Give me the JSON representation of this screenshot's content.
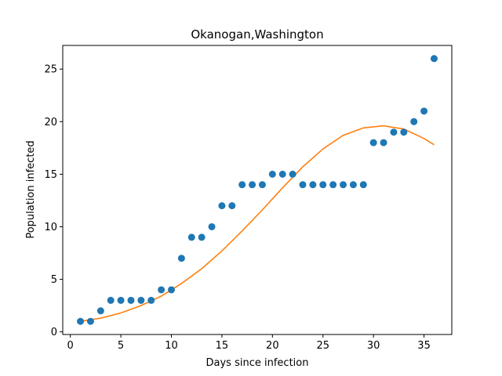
{
  "chart_data": {
    "type": "scatter",
    "title": "Okanogan,Washington",
    "xlabel": "Days since infection",
    "ylabel": "Population infected",
    "xlim": [
      -0.75,
      37.75
    ],
    "ylim": [
      -0.25,
      27.25
    ],
    "xticks": [
      0,
      5,
      10,
      15,
      20,
      25,
      30,
      35
    ],
    "yticks": [
      0,
      5,
      10,
      15,
      20,
      25
    ],
    "grid": false,
    "colors": {
      "points": "#1f77b4",
      "fit": "#ff7f0e"
    },
    "series": [
      {
        "type": "scatter",
        "x": [
          1,
          2,
          3,
          4,
          5,
          6,
          7,
          8,
          9,
          10,
          11,
          12,
          13,
          14,
          15,
          16,
          17,
          18,
          19,
          20,
          21,
          22,
          23,
          24,
          25,
          26,
          27,
          28,
          29,
          30,
          31,
          32,
          33,
          34,
          35,
          36
        ],
        "y": [
          1,
          1,
          2,
          3,
          3,
          3,
          3,
          3,
          4,
          4,
          7,
          9,
          9,
          10,
          12,
          12,
          14,
          14,
          14,
          15,
          15,
          15,
          14,
          14,
          14,
          14,
          14,
          14,
          14,
          18,
          18,
          19,
          19,
          20,
          21,
          26
        ]
      },
      {
        "type": "line",
        "x": [
          1,
          3,
          5,
          7,
          9,
          11,
          13,
          15,
          17,
          19,
          21,
          23,
          25,
          27,
          29,
          31,
          33,
          35,
          36
        ],
        "y": [
          1.0,
          1.3,
          1.8,
          2.5,
          3.4,
          4.6,
          6.0,
          7.7,
          9.6,
          11.6,
          13.7,
          15.7,
          17.4,
          18.7,
          19.4,
          19.6,
          19.3,
          18.4,
          17.8
        ]
      }
    ]
  }
}
